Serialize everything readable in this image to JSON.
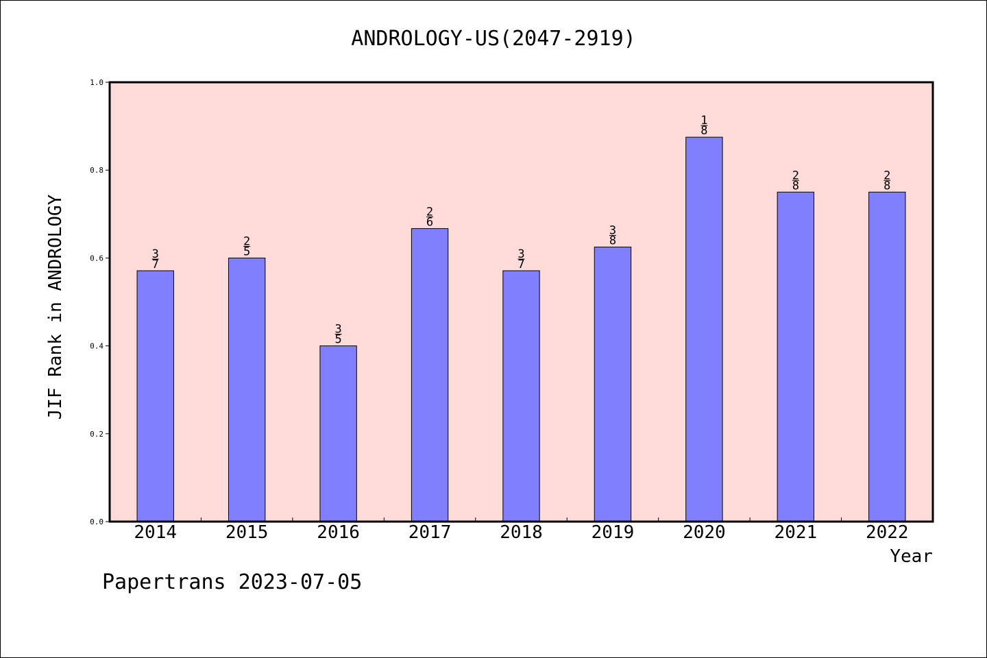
{
  "chart_data": {
    "type": "bar",
    "title": "ANDROLOGY-US(2047-2919)",
    "xlabel": "Year",
    "ylabel": "JIF Rank in ANDROLOGY",
    "categories": [
      "2014",
      "2015",
      "2016",
      "2017",
      "2018",
      "2019",
      "2020",
      "2021",
      "2022"
    ],
    "values": [
      0.571,
      0.6,
      0.4,
      0.667,
      0.571,
      0.625,
      0.875,
      0.75,
      0.75
    ],
    "bar_labels": [
      {
        "num": "3",
        "den": "7"
      },
      {
        "num": "2",
        "den": "5"
      },
      {
        "num": "3",
        "den": "5"
      },
      {
        "num": "2",
        "den": "6"
      },
      {
        "num": "3",
        "den": "7"
      },
      {
        "num": "3",
        "den": "8"
      },
      {
        "num": "1",
        "den": "8"
      },
      {
        "num": "2",
        "den": "8"
      },
      {
        "num": "2",
        "den": "8"
      }
    ],
    "ylim": [
      0,
      1.0
    ],
    "yticks": [
      "0.0",
      "0.2",
      "0.4",
      "0.6",
      "0.8",
      "1.0"
    ],
    "grid": false,
    "legend": "none",
    "colors": {
      "plot_background": "#FFDCDA",
      "bar_fill": "#8080FF",
      "bar_edge": "#000000"
    }
  },
  "footer": {
    "text": "Papertrans 2023-07-05"
  }
}
